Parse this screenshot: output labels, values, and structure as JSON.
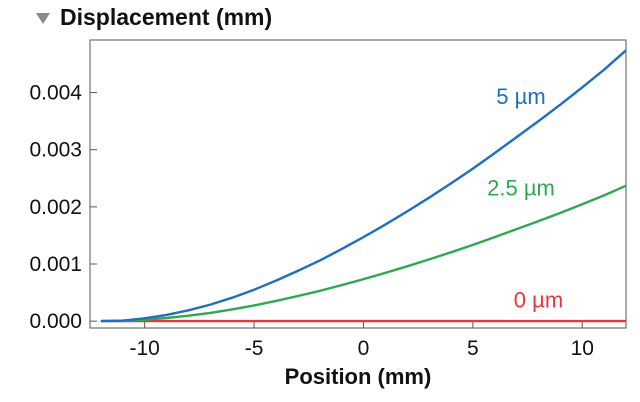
{
  "panel": {
    "collapse_icon": "collapse-triangle-icon",
    "title": "Displacement (mm)"
  },
  "chart_data": {
    "type": "line",
    "title": "Displacement (mm)",
    "xlabel": "Position (mm)",
    "ylabel": "",
    "xlim": [
      -12.5,
      12.0
    ],
    "ylim": [
      -0.00012,
      0.00492
    ],
    "xticks": [
      -10,
      -5,
      0,
      5,
      10
    ],
    "xtick_labels": [
      "-10",
      "-5",
      "0",
      "5",
      "10"
    ],
    "yticks": [
      0,
      0.001,
      0.002,
      0.003,
      0.004
    ],
    "ytick_labels": [
      "0.000",
      "0.001",
      "0.002",
      "0.003",
      "0.004"
    ],
    "grid": false,
    "legend": "inline labels",
    "x": [
      -12,
      -11,
      -10,
      -9,
      -8,
      -7,
      -6,
      -5,
      -4,
      -3,
      -2,
      -1,
      0,
      1,
      2,
      3,
      4,
      5,
      6,
      7,
      8,
      9,
      10,
      11,
      12
    ],
    "series": [
      {
        "name": "5 µm",
        "color": "#1f6fc0",
        "values": [
          0.0,
          1e-05,
          5e-05,
          0.00011,
          0.00019,
          0.00029,
          0.00041,
          0.00055,
          0.00071,
          0.00088,
          0.00106,
          0.00126,
          0.00147,
          0.00169,
          0.00192,
          0.00216,
          0.00241,
          0.00267,
          0.00294,
          0.00322,
          0.0035,
          0.00379,
          0.00409,
          0.0044,
          0.00474
        ]
      },
      {
        "name": "2.5 µm",
        "color": "#2fa84f",
        "values": [
          0.0,
          5e-06,
          2.5e-05,
          5.5e-05,
          9.5e-05,
          0.000145,
          0.000205,
          0.000275,
          0.000355,
          0.00044,
          0.00053,
          0.00063,
          0.000735,
          0.000845,
          0.00096,
          0.00108,
          0.001205,
          0.001335,
          0.00147,
          0.00161,
          0.00175,
          0.001895,
          0.002045,
          0.0022,
          0.00237
        ]
      },
      {
        "name": "0 µm",
        "color": "#e8373a",
        "values": [
          0,
          0,
          0,
          0,
          0,
          0,
          0,
          0,
          0,
          0,
          0,
          0,
          0,
          0,
          0,
          0,
          0,
          0,
          0,
          0,
          0,
          0,
          0,
          0,
          0
        ]
      }
    ],
    "annotations": [
      {
        "text": "5 µm",
        "x": 7.2,
        "y": 0.0038,
        "color": "#1f6fc0"
      },
      {
        "text": "2.5 µm",
        "x": 7.2,
        "y": 0.0022,
        "color": "#2fa84f"
      },
      {
        "text": "0 µm",
        "x": 8.0,
        "y": 0.00024,
        "color": "#e8373a"
      }
    ]
  }
}
